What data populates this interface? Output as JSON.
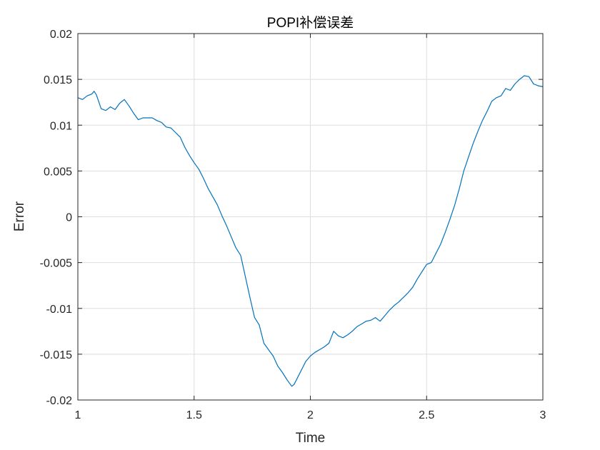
{
  "chart_data": {
    "type": "line",
    "title": "POPI补偿误差",
    "xlabel": "Time",
    "ylabel": "Error",
    "xlim": [
      1,
      3
    ],
    "ylim": [
      -0.02,
      0.02
    ],
    "grid": true,
    "x_ticks": [
      1,
      1.5,
      2,
      2.5,
      3
    ],
    "x_tick_labels": [
      "1",
      "1.5",
      "2",
      "2.5",
      "3"
    ],
    "y_ticks": [
      -0.02,
      -0.015,
      -0.01,
      -0.005,
      0,
      0.005,
      0.01,
      0.015,
      0.02
    ],
    "y_tick_labels": [
      "-0.02",
      "-0.015",
      "-0.01",
      "-0.005",
      "0",
      "0.005",
      "0.01",
      "0.015",
      "0.02"
    ],
    "line_color": "#0072BD",
    "series": [
      {
        "x": [
          1.0,
          1.02,
          1.04,
          1.06,
          1.07,
          1.08,
          1.1,
          1.12,
          1.14,
          1.16,
          1.18,
          1.2,
          1.22,
          1.24,
          1.26,
          1.28,
          1.3,
          1.32,
          1.34,
          1.36,
          1.38,
          1.4,
          1.42,
          1.44,
          1.46,
          1.48,
          1.5,
          1.52,
          1.54,
          1.56,
          1.58,
          1.6,
          1.62,
          1.64,
          1.66,
          1.68,
          1.7,
          1.72,
          1.74,
          1.76,
          1.78,
          1.8,
          1.82,
          1.84,
          1.86,
          1.88,
          1.9,
          1.92,
          1.93,
          1.94,
          1.96,
          1.98,
          2.0,
          2.02,
          2.04,
          2.06,
          2.08,
          2.1,
          2.12,
          2.14,
          2.16,
          2.18,
          2.2,
          2.22,
          2.24,
          2.26,
          2.28,
          2.3,
          2.32,
          2.34,
          2.36,
          2.38,
          2.4,
          2.42,
          2.44,
          2.46,
          2.48,
          2.5,
          2.52,
          2.54,
          2.56,
          2.58,
          2.6,
          2.62,
          2.64,
          2.66,
          2.68,
          2.7,
          2.72,
          2.74,
          2.76,
          2.78,
          2.8,
          2.82,
          2.84,
          2.86,
          2.88,
          2.9,
          2.92,
          2.94,
          2.96,
          2.98,
          3.0
        ],
        "y": [
          0.013,
          0.0128,
          0.0132,
          0.0134,
          0.0137,
          0.0133,
          0.0118,
          0.0116,
          0.012,
          0.0117,
          0.0124,
          0.0128,
          0.0121,
          0.0113,
          0.0106,
          0.0108,
          0.0108,
          0.0108,
          0.0105,
          0.0103,
          0.0098,
          0.0097,
          0.0092,
          0.0087,
          0.0076,
          0.0067,
          0.0059,
          0.0052,
          0.0042,
          0.0031,
          0.0022,
          0.0013,
          0.0001,
          -0.001,
          -0.0022,
          -0.0034,
          -0.0042,
          -0.0065,
          -0.0088,
          -0.011,
          -0.0118,
          -0.0138,
          -0.0145,
          -0.0152,
          -0.0163,
          -0.017,
          -0.0178,
          -0.0185,
          -0.0183,
          -0.0178,
          -0.0168,
          -0.0158,
          -0.0152,
          -0.0148,
          -0.0145,
          -0.0142,
          -0.0138,
          -0.0125,
          -0.013,
          -0.0132,
          -0.0129,
          -0.0125,
          -0.012,
          -0.0117,
          -0.0114,
          -0.0113,
          -0.011,
          -0.0114,
          -0.0108,
          -0.0102,
          -0.0097,
          -0.0093,
          -0.0088,
          -0.0083,
          -0.0077,
          -0.0068,
          -0.006,
          -0.0052,
          -0.005,
          -0.004,
          -0.003,
          -0.0017,
          -0.0003,
          0.0012,
          0.003,
          0.005,
          0.0065,
          0.008,
          0.0093,
          0.0105,
          0.0115,
          0.0126,
          0.013,
          0.0132,
          0.014,
          0.0138,
          0.0145,
          0.015,
          0.0154,
          0.0153,
          0.0145,
          0.0143,
          0.0142
        ]
      }
    ]
  }
}
